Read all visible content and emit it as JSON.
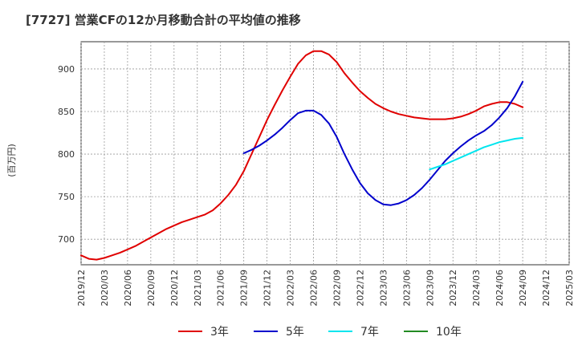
{
  "chart_data": {
    "type": "line",
    "title": "[7727]  営業CFの12か月移動合計の平均値の推移",
    "ylabel": "(百万円)",
    "xlabel": "",
    "ylim": [
      670,
      932
    ],
    "yticks": [
      700,
      750,
      800,
      850,
      900
    ],
    "x_ticks": [
      "2019/12",
      "2020/03",
      "2020/06",
      "2020/09",
      "2020/12",
      "2021/03",
      "2021/06",
      "2021/09",
      "2021/12",
      "2022/03",
      "2022/06",
      "2022/09",
      "2022/12",
      "2023/03",
      "2023/06",
      "2023/09",
      "2023/12",
      "2024/03",
      "2024/06",
      "2024/09",
      "2024/12",
      "2025/03"
    ],
    "grid": true,
    "legend_position": "bottom",
    "series": [
      {
        "name": "3年",
        "color": "#e00000",
        "x": [
          "2019/12",
          "2020/01",
          "2020/02",
          "2020/03",
          "2020/04",
          "2020/05",
          "2020/06",
          "2020/07",
          "2020/08",
          "2020/09",
          "2020/10",
          "2020/11",
          "2020/12",
          "2021/01",
          "2021/02",
          "2021/03",
          "2021/04",
          "2021/05",
          "2021/06",
          "2021/07",
          "2021/08",
          "2021/09",
          "2021/10",
          "2021/11",
          "2021/12",
          "2022/01",
          "2022/02",
          "2022/03",
          "2022/04",
          "2022/05",
          "2022/06",
          "2022/07",
          "2022/08",
          "2022/09",
          "2022/10",
          "2022/11",
          "2022/12",
          "2023/01",
          "2023/02",
          "2023/03",
          "2023/04",
          "2023/05",
          "2023/06",
          "2023/07",
          "2023/08",
          "2023/09",
          "2023/10",
          "2023/11",
          "2023/12",
          "2024/01",
          "2024/02",
          "2024/03",
          "2024/04",
          "2024/05",
          "2024/06",
          "2024/07",
          "2024/08",
          "2024/09"
        ],
        "values": [
          681,
          677,
          676,
          678,
          681,
          684,
          688,
          692,
          697,
          702,
          707,
          712,
          716,
          720,
          723,
          726,
          729,
          734,
          742,
          752,
          764,
          780,
          800,
          820,
          840,
          858,
          875,
          891,
          906,
          916,
          921,
          921,
          917,
          908,
          895,
          884,
          874,
          866,
          859,
          854,
          850,
          847,
          845,
          843,
          842,
          841,
          841,
          841,
          842,
          844,
          847,
          851,
          856,
          859,
          861,
          861,
          859,
          855
        ],
        "line_width": 2
      },
      {
        "name": "5年",
        "color": "#0000cc",
        "x": [
          "2021/09",
          "2021/10",
          "2021/11",
          "2021/12",
          "2022/01",
          "2022/02",
          "2022/03",
          "2022/04",
          "2022/05",
          "2022/06",
          "2022/07",
          "2022/08",
          "2022/09",
          "2022/10",
          "2022/11",
          "2022/12",
          "2023/01",
          "2023/02",
          "2023/03",
          "2023/04",
          "2023/05",
          "2023/06",
          "2023/07",
          "2023/08",
          "2023/09",
          "2023/10",
          "2023/11",
          "2023/12",
          "2024/01",
          "2024/02",
          "2024/03",
          "2024/04",
          "2024/05",
          "2024/06",
          "2024/07",
          "2024/08",
          "2024/09"
        ],
        "values": [
          801,
          805,
          810,
          816,
          823,
          831,
          840,
          848,
          851,
          851,
          846,
          836,
          820,
          800,
          782,
          766,
          754,
          746,
          741,
          740,
          742,
          746,
          752,
          760,
          770,
          781,
          792,
          801,
          809,
          816,
          822,
          827,
          834,
          843,
          854,
          868,
          885
        ],
        "line_width": 2
      },
      {
        "name": "7年",
        "color": "#00e5ee",
        "x": [
          "2023/09",
          "2023/10",
          "2023/11",
          "2023/12",
          "2024/01",
          "2024/02",
          "2024/03",
          "2024/04",
          "2024/05",
          "2024/06",
          "2024/07",
          "2024/08",
          "2024/09"
        ],
        "values": [
          782,
          785,
          788,
          792,
          796,
          800,
          804,
          808,
          811,
          814,
          816,
          818,
          819
        ],
        "line_width": 2
      },
      {
        "name": "10年",
        "color": "#228b22",
        "x": [],
        "values": [],
        "line_width": 2
      }
    ]
  }
}
